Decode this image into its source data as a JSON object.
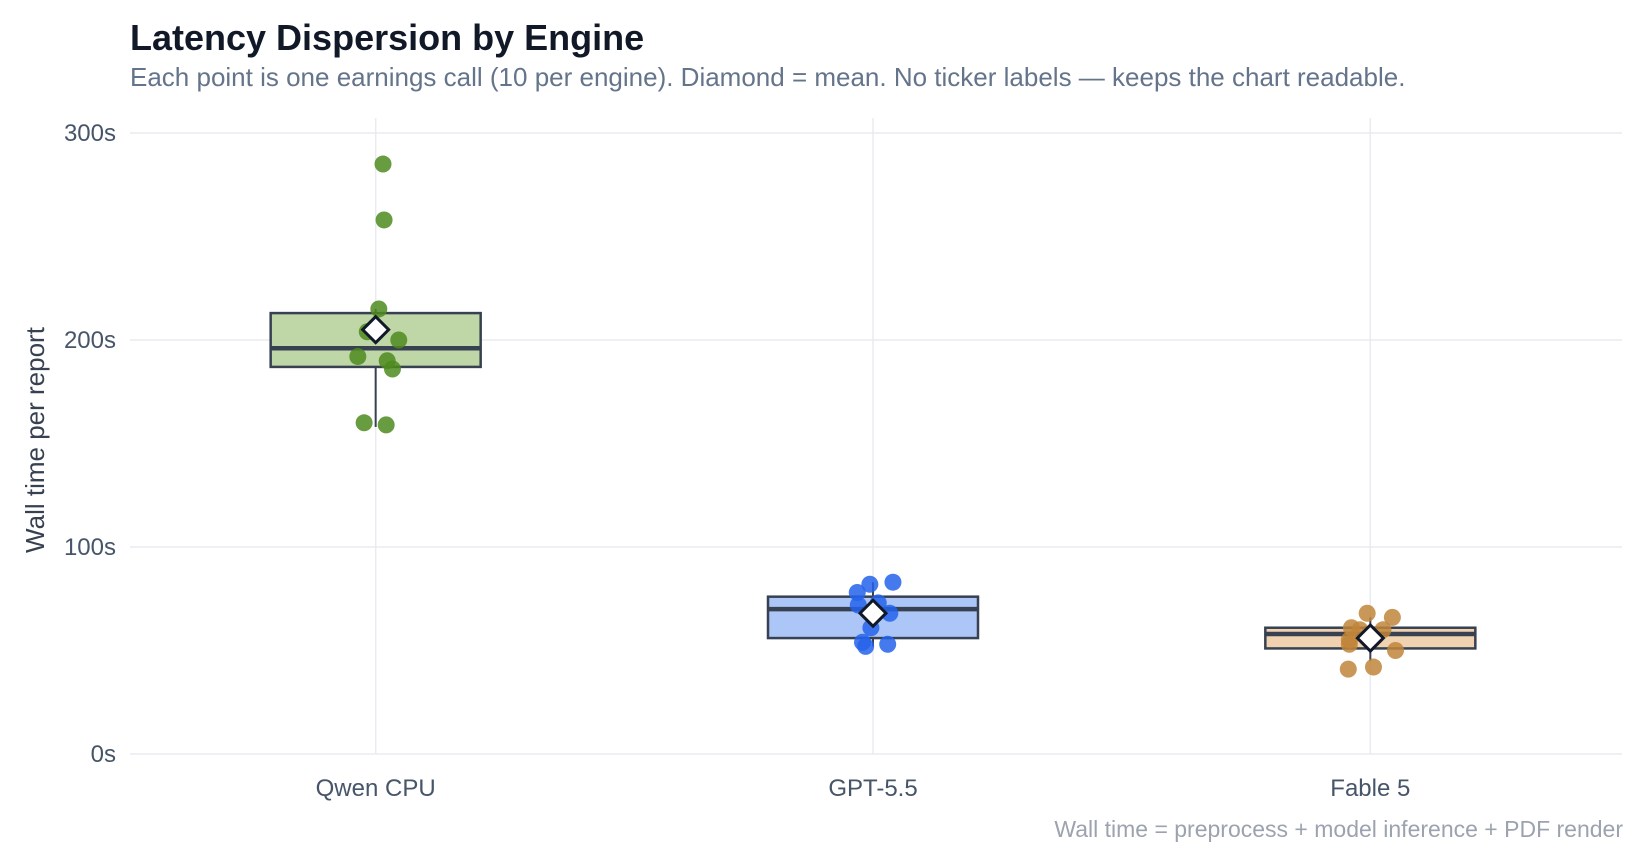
{
  "header": {
    "title": "Latency Dispersion by Engine",
    "subtitle": "Each point is one earnings call (10 per engine). Diamond = mean. No ticker labels — keeps the chart readable."
  },
  "footnote": "Wall time = preprocess + model inference + PDF render",
  "chart_data": {
    "type": "box",
    "title": "Latency Dispersion by Engine",
    "subtitle": "Each point is one earnings call (10 per engine). Diamond = mean. No ticker labels — keeps the chart readable.",
    "xlabel": "",
    "ylabel": "Wall time per report",
    "ylim": [
      0,
      300
    ],
    "y_ticks": [
      0,
      100,
      200,
      300
    ],
    "y_tick_labels": [
      "0s",
      "100s",
      "200s",
      "300s"
    ],
    "grid": true,
    "categories": [
      "Qwen CPU",
      "GPT-5.5",
      "Fable 5"
    ],
    "series": [
      {
        "category": "Qwen CPU",
        "color": "#4d8b1f",
        "box_fill": "#bfd7a6",
        "q1": 187,
        "median": 196,
        "q3": 213,
        "whisker_low": 158,
        "whisker_high": 215,
        "mean": 205,
        "points": [
          {
            "jitter": 0.07,
            "y": 285
          },
          {
            "jitter": 0.08,
            "y": 258
          },
          {
            "jitter": 0.03,
            "y": 215
          },
          {
            "jitter": -0.08,
            "y": 204
          },
          {
            "jitter": 0.22,
            "y": 200
          },
          {
            "jitter": -0.17,
            "y": 192
          },
          {
            "jitter": 0.11,
            "y": 190
          },
          {
            "jitter": 0.16,
            "y": 186
          },
          {
            "jitter": -0.11,
            "y": 160
          },
          {
            "jitter": 0.1,
            "y": 159
          }
        ]
      },
      {
        "category": "GPT-5.5",
        "color": "#2563eb",
        "box_fill": "#abc6f7",
        "q1": 56,
        "median": 70,
        "q3": 76,
        "whisker_low": 52,
        "whisker_high": 83,
        "mean": 68,
        "points": [
          {
            "jitter": 0.19,
            "y": 83
          },
          {
            "jitter": -0.03,
            "y": 82
          },
          {
            "jitter": -0.15,
            "y": 78
          },
          {
            "jitter": 0.05,
            "y": 73
          },
          {
            "jitter": -0.14,
            "y": 72
          },
          {
            "jitter": 0.16,
            "y": 68
          },
          {
            "jitter": -0.02,
            "y": 61
          },
          {
            "jitter": -0.1,
            "y": 54
          },
          {
            "jitter": 0.14,
            "y": 53
          },
          {
            "jitter": -0.07,
            "y": 52
          }
        ]
      },
      {
        "category": "Fable 5",
        "color": "#c0853a",
        "box_fill": "#f0d2b1",
        "q1": 51,
        "median": 58,
        "q3": 61,
        "whisker_low": 45,
        "whisker_high": 66,
        "mean": 56,
        "points": [
          {
            "jitter": -0.03,
            "y": 68
          },
          {
            "jitter": 0.21,
            "y": 66
          },
          {
            "jitter": -0.18,
            "y": 61
          },
          {
            "jitter": -0.1,
            "y": 60
          },
          {
            "jitter": 0.12,
            "y": 60
          },
          {
            "jitter": -0.2,
            "y": 55
          },
          {
            "jitter": -0.2,
            "y": 53
          },
          {
            "jitter": 0.24,
            "y": 50
          },
          {
            "jitter": 0.03,
            "y": 42
          },
          {
            "jitter": -0.21,
            "y": 41
          }
        ]
      }
    ]
  }
}
